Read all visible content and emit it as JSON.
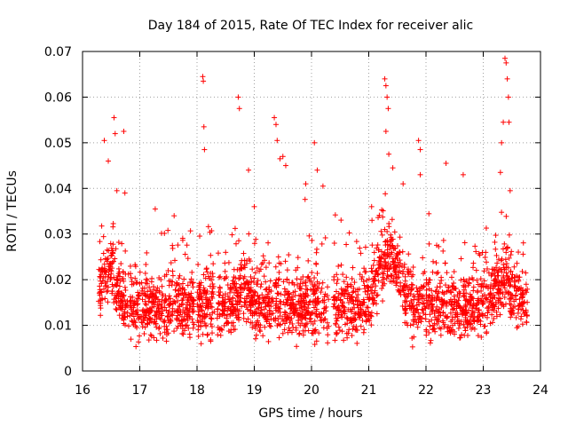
{
  "chart_data": {
    "type": "scatter",
    "title": "Day 184 of 2015, Rate Of TEC Index for receiver alic",
    "xlabel": "GPS time / hours",
    "ylabel": "ROTI / TECUs",
    "xlim": [
      16,
      24
    ],
    "ylim": [
      0,
      0.07
    ],
    "x_ticks": [
      16,
      17,
      18,
      19,
      20,
      21,
      22,
      23,
      24
    ],
    "y_ticks": [
      0,
      0.01,
      0.02,
      0.03,
      0.04,
      0.05,
      0.06,
      0.07
    ],
    "x_tick_labels": [
      "16",
      "17",
      "18",
      "19",
      "20",
      "21",
      "22",
      "23",
      "24"
    ],
    "y_tick_labels": [
      "0",
      "0.01",
      "0.02",
      "0.03",
      "0.04",
      "0.05",
      "0.06",
      "0.07"
    ],
    "grid": true,
    "marker": "+",
    "color": "#ff0000",
    "series": [
      {
        "name": "ROTI",
        "points": [
          [
            16.38,
            0.0505
          ],
          [
            16.45,
            0.046
          ],
          [
            16.55,
            0.0555
          ],
          [
            16.57,
            0.052
          ],
          [
            16.6,
            0.0395
          ],
          [
            16.72,
            0.0525
          ],
          [
            16.74,
            0.039
          ],
          [
            17.27,
            0.0355
          ],
          [
            17.6,
            0.034
          ],
          [
            18.1,
            0.0645
          ],
          [
            18.11,
            0.0635
          ],
          [
            18.12,
            0.0535
          ],
          [
            18.13,
            0.0485
          ],
          [
            18.72,
            0.06
          ],
          [
            18.74,
            0.0575
          ],
          [
            18.9,
            0.044
          ],
          [
            19.0,
            0.036
          ],
          [
            19.35,
            0.0555
          ],
          [
            19.38,
            0.054
          ],
          [
            19.4,
            0.0505
          ],
          [
            19.45,
            0.0465
          ],
          [
            19.5,
            0.047
          ],
          [
            19.55,
            0.045
          ],
          [
            19.9,
            0.041
          ],
          [
            20.05,
            0.05
          ],
          [
            20.1,
            0.044
          ],
          [
            20.2,
            0.0405
          ],
          [
            20.4,
            0.028
          ],
          [
            21.05,
            0.036
          ],
          [
            21.28,
            0.064
          ],
          [
            21.3,
            0.0625
          ],
          [
            21.32,
            0.06
          ],
          [
            21.34,
            0.0575
          ],
          [
            21.3,
            0.0525
          ],
          [
            21.35,
            0.0475
          ],
          [
            21.42,
            0.0445
          ],
          [
            21.6,
            0.041
          ],
          [
            21.87,
            0.0505
          ],
          [
            21.9,
            0.0485
          ],
          [
            21.9,
            0.043
          ],
          [
            22.35,
            0.0455
          ],
          [
            22.65,
            0.043
          ],
          [
            23.3,
            0.0435
          ],
          [
            23.32,
            0.05
          ],
          [
            23.35,
            0.0545
          ],
          [
            23.38,
            0.0685
          ],
          [
            23.4,
            0.0675
          ],
          [
            23.42,
            0.064
          ],
          [
            23.44,
            0.06
          ],
          [
            23.45,
            0.0545
          ],
          [
            23.47,
            0.0395
          ]
        ]
      }
    ]
  }
}
